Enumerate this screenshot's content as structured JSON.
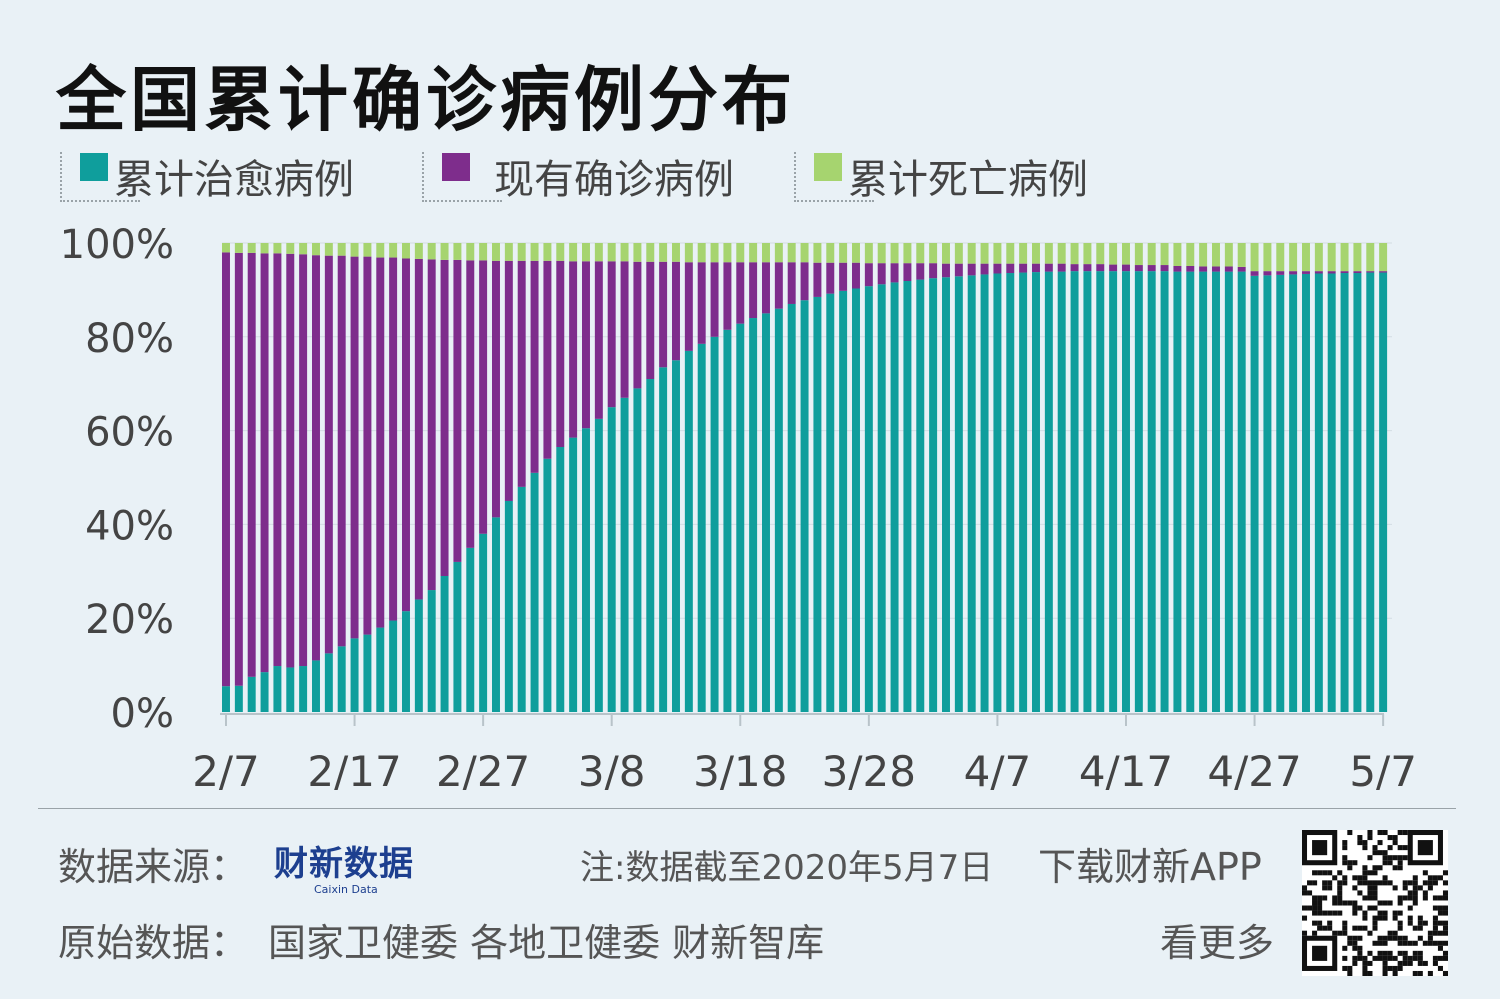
{
  "title": "全国累计确诊病例分布",
  "legend": [
    {
      "label": "累计治愈病例",
      "color": "#0f9e9c"
    },
    {
      "label": "现有确诊病例",
      "color": "#7e2d8c"
    },
    {
      "label": "累计死亡病例",
      "color": "#a6d46f"
    }
  ],
  "chart_data": {
    "type": "bar",
    "stacked": true,
    "normalized": true,
    "x_start": "2/7",
    "x_end": "5/7",
    "x_ticks": [
      "2/7",
      "2/17",
      "2/27",
      "3/8",
      "3/18",
      "3/28",
      "4/7",
      "4/17",
      "4/27",
      "5/7"
    ],
    "y_ticks": [
      "0%",
      "20%",
      "40%",
      "60%",
      "80%",
      "100%"
    ],
    "ylim": [
      0,
      100
    ],
    "grid": true,
    "series": [
      {
        "name": "累计治愈病例",
        "color": "#0f9e9c",
        "values": [
          5.5,
          5.6,
          7.5,
          8.5,
          9.8,
          9.5,
          9.8,
          11.0,
          12.5,
          14.0,
          15.7,
          16.5,
          18.0,
          19.5,
          21.5,
          24.0,
          26.0,
          29.0,
          32.0,
          35.0,
          38.0,
          41.5,
          45.0,
          48.0,
          51.0,
          54.0,
          56.5,
          58.5,
          60.5,
          62.5,
          65.0,
          67.0,
          69.0,
          71.0,
          73.5,
          75.0,
          77.0,
          78.5,
          80.0,
          81.5,
          82.8,
          84.0,
          85.0,
          86.0,
          87.0,
          87.8,
          88.5,
          89.2,
          89.8,
          90.3,
          90.8,
          91.2,
          91.6,
          91.9,
          92.2,
          92.5,
          92.7,
          92.9,
          93.1,
          93.3,
          93.5,
          93.6,
          93.7,
          93.8,
          93.9,
          93.9,
          94.0,
          94.0,
          94.0,
          94.0,
          94.0,
          94.0,
          94.0,
          94.0,
          93.9,
          93.9,
          93.9,
          93.9,
          93.9,
          93.9,
          93.0,
          93.1,
          93.2,
          93.3,
          93.4,
          93.5,
          93.5,
          93.6,
          93.6,
          93.7,
          93.7
        ]
      },
      {
        "name": "现有确诊病例",
        "color": "#7e2d8c",
        "values": [
          92.5,
          92.3,
          90.4,
          89.3,
          88.0,
          88.2,
          87.8,
          86.4,
          84.8,
          83.3,
          81.4,
          80.6,
          78.9,
          77.4,
          75.2,
          72.6,
          70.5,
          67.4,
          64.4,
          61.3,
          58.3,
          54.7,
          51.2,
          48.2,
          45.2,
          42.2,
          39.7,
          37.6,
          35.6,
          33.6,
          31.1,
          29.1,
          27.0,
          25.0,
          22.5,
          21.0,
          18.9,
          17.4,
          15.9,
          14.4,
          13.1,
          11.9,
          10.9,
          9.9,
          8.9,
          8.1,
          7.3,
          6.6,
          6.0,
          5.5,
          4.9,
          4.5,
          4.1,
          3.8,
          3.5,
          3.2,
          2.9,
          2.7,
          2.5,
          2.3,
          2.1,
          2.0,
          1.9,
          1.8,
          1.7,
          1.7,
          1.5,
          1.5,
          1.5,
          1.4,
          1.4,
          1.3,
          1.3,
          1.3,
          1.2,
          1.2,
          1.1,
          1.1,
          1.1,
          1.0,
          1.0,
          0.9,
          0.8,
          0.7,
          0.6,
          0.5,
          0.5,
          0.4,
          0.4,
          0.3,
          0.3
        ]
      },
      {
        "name": "累计死亡病例",
        "color": "#a6d46f",
        "values": [
          2.0,
          2.1,
          2.1,
          2.2,
          2.2,
          2.3,
          2.4,
          2.6,
          2.7,
          2.7,
          2.9,
          2.9,
          3.1,
          3.1,
          3.3,
          3.4,
          3.5,
          3.6,
          3.6,
          3.7,
          3.7,
          3.8,
          3.8,
          3.8,
          3.8,
          3.8,
          3.8,
          3.9,
          3.9,
          3.9,
          3.9,
          3.9,
          4.0,
          4.0,
          4.0,
          4.0,
          4.1,
          4.1,
          4.1,
          4.1,
          4.1,
          4.1,
          4.1,
          4.1,
          4.1,
          4.1,
          4.2,
          4.2,
          4.2,
          4.2,
          4.3,
          4.3,
          4.3,
          4.3,
          4.3,
          4.3,
          4.4,
          4.4,
          4.4,
          4.4,
          4.4,
          4.4,
          4.4,
          4.4,
          4.4,
          4.4,
          4.5,
          4.5,
          4.5,
          4.6,
          4.6,
          4.7,
          4.7,
          4.7,
          4.9,
          4.9,
          5.0,
          5.0,
          5.0,
          5.1,
          6.0,
          6.0,
          6.0,
          6.0,
          6.0,
          6.0,
          6.0,
          6.0,
          6.0,
          6.0,
          6.0
        ]
      }
    ]
  },
  "footer": {
    "source_label": "数据来源：",
    "brand_name": "财新数据",
    "brand_sub": "Caixin Data",
    "note": "注:数据截至2020年5月7日",
    "download": "下载财新APP",
    "origin_label": "原始数据：",
    "origin_sources": "国家卫健委  各地卫健委  财新智库",
    "see_more": "看更多"
  },
  "watermark_text": "财新数据"
}
